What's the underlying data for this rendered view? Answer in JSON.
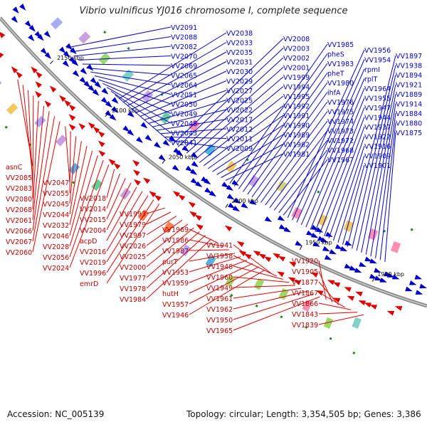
{
  "title": "Vibrio vulnificus YJ016 chromosome I, complete sequence",
  "footer": {
    "accession_label": "Accession:",
    "accession": "NC_005139",
    "topology_label": "Topology:",
    "topology": "circular",
    "length_label": "Length:",
    "length": "3,354,505 bp",
    "genes_label": "Genes:",
    "genes": "3,386"
  },
  "colors": {
    "forward_strand": "#0000cc",
    "reverse_strand": "#e00000",
    "backbone": "#888888",
    "gc_skew": "#1a8a1a"
  },
  "scale_ticks": [
    "2150 kbp",
    "2100 kbp",
    "2050 kbp",
    "2000 kbp",
    "1950 kbp",
    "1900 kbp"
  ],
  "forward_labels": [
    "VV2091",
    "VV2088",
    "VV2082",
    "VV2070",
    "VV2069",
    "VV2065",
    "VV2064",
    "VV2051",
    "VV2050",
    "VV2049",
    "VV2048",
    "VV2043",
    "VV2041",
    "VV2038",
    "VV2033",
    "VV2035",
    "VV2031",
    "VV2030",
    "VV2029",
    "VV2027",
    "VV2025",
    "VV2022",
    "VV2017",
    "VV2012",
    "VV2011",
    "VV2009",
    "VV2008",
    "VV2003",
    "VV2002",
    "VV2001",
    "VV1999",
    "VV1994",
    "VV1995",
    "VV1992",
    "VV1991",
    "VV1990",
    "VV1989",
    "VV1982",
    "VV1981",
    "VV1985",
    "pheS",
    "VV1983",
    "pheT",
    "VV1980",
    "ihfA",
    "VV1976",
    "VV1975",
    "VV1974",
    "VV1973",
    "VV1972",
    "VV1968",
    "VV1967",
    "VV1956",
    "VV1954",
    "rpmI",
    "rplT",
    "VV1964",
    "VV1955",
    "VV1947",
    "VV1944",
    "VV1937",
    "VV1922",
    "VV1916",
    "VV1909",
    "VV1901",
    "VV1897",
    "VV1938",
    "VV1894",
    "VV1921",
    "VV1889",
    "VV1914",
    "VV1884",
    "VV1880",
    "VV1875"
  ],
  "reverse_labels": [
    "asnC",
    "VV2085",
    "VV2083",
    "VV2080",
    "VV2068",
    "VV2061",
    "VV2066",
    "VV2067",
    "VV2060",
    "VV2047",
    "VV2055",
    "VV2045",
    "VV2044",
    "VV2032",
    "VV2046",
    "VV2028",
    "VV2056",
    "VV2024",
    "VV2018",
    "VV2014",
    "VV2015",
    "VV2004",
    "acpD",
    "VV2016",
    "VV2019",
    "VV1996",
    "emrD",
    "VV1993",
    "VV1979",
    "VV1997",
    "VV2026",
    "VV2025",
    "VV2000",
    "VV1977",
    "VV1978",
    "VV1984",
    "VV1969",
    "VV1986",
    "VV1987",
    "purT",
    "VV1953",
    "VV1959",
    "hutH",
    "VV1957",
    "VV1946",
    "VV1941",
    "VV1958",
    "VV1948",
    "VV1960",
    "VV1949",
    "VV1961",
    "VV1962",
    "VV1950",
    "VV1965",
    "VV1920",
    "VV1905",
    "VV1877",
    "VV1867",
    "VV1866",
    "VV1843",
    "VV1839"
  ]
}
